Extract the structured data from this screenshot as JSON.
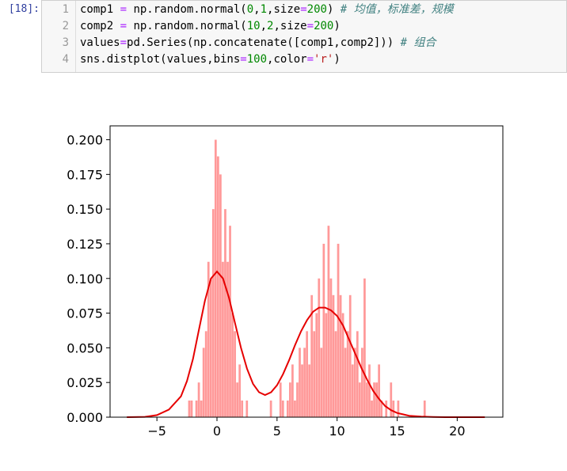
{
  "cell": {
    "prompt": "[18]:",
    "lines": [
      {
        "num": "1",
        "tokens": [
          {
            "t": "comp1 ",
            "c": "kw"
          },
          {
            "t": "=",
            "c": "op"
          },
          {
            "t": " np.random.normal(",
            "c": "kw"
          },
          {
            "t": "0",
            "c": "num"
          },
          {
            "t": ",",
            "c": "kw"
          },
          {
            "t": "1",
            "c": "num"
          },
          {
            "t": ",size",
            "c": "kw"
          },
          {
            "t": "=",
            "c": "op"
          },
          {
            "t": "200",
            "c": "num"
          },
          {
            "t": ") ",
            "c": "kw"
          },
          {
            "t": "# 均值，标准差，规模",
            "c": "com"
          }
        ]
      },
      {
        "num": "2",
        "tokens": [
          {
            "t": "comp2 ",
            "c": "kw"
          },
          {
            "t": "=",
            "c": "op"
          },
          {
            "t": " np.random.normal(",
            "c": "kw"
          },
          {
            "t": "10",
            "c": "num"
          },
          {
            "t": ",",
            "c": "kw"
          },
          {
            "t": "2",
            "c": "num"
          },
          {
            "t": ",size",
            "c": "kw"
          },
          {
            "t": "=",
            "c": "op"
          },
          {
            "t": "200",
            "c": "num"
          },
          {
            "t": ")",
            "c": "kw"
          }
        ]
      },
      {
        "num": "3",
        "tokens": [
          {
            "t": "values",
            "c": "kw"
          },
          {
            "t": "=",
            "c": "op"
          },
          {
            "t": "pd.Series(np.concatenate([comp1,comp2])) ",
            "c": "kw"
          },
          {
            "t": "# 组合",
            "c": "com"
          }
        ]
      },
      {
        "num": "4",
        "tokens": [
          {
            "t": "sns.distplot(values,bins",
            "c": "kw"
          },
          {
            "t": "=",
            "c": "op"
          },
          {
            "t": "100",
            "c": "num"
          },
          {
            "t": ",color",
            "c": "kw"
          },
          {
            "t": "=",
            "c": "op"
          },
          {
            "t": "'r'",
            "c": "str"
          },
          {
            "t": ")",
            "c": "kw"
          }
        ]
      }
    ]
  },
  "chart_data": {
    "type": "bar",
    "subtype": "histogram_with_kde",
    "title": "",
    "xlabel": "",
    "ylabel": "",
    "xlim": [
      -8.9,
      23.8
    ],
    "ylim": [
      0,
      0.21
    ],
    "xticks": [
      -5,
      0,
      5,
      10,
      15,
      20
    ],
    "xtick_labels": [
      "−5",
      "0",
      "5",
      "10",
      "15",
      "20"
    ],
    "yticks": [
      0,
      0.025,
      0.05,
      0.075,
      0.1,
      0.125,
      0.15,
      0.175,
      0.2
    ],
    "ytick_labels": [
      "0.000",
      "0.025",
      "0.050",
      "0.075",
      "0.100",
      "0.125",
      "0.150",
      "0.175",
      "0.200"
    ],
    "grid": false,
    "legend": "none",
    "bar_color": "#ff9999",
    "line_color": "#e60000",
    "bin_width": 0.2,
    "bins": [
      {
        "x": -2.4,
        "y": 0.012
      },
      {
        "x": -2.2,
        "y": 0.012
      },
      {
        "x": -1.8,
        "y": 0.012
      },
      {
        "x": -1.6,
        "y": 0.025
      },
      {
        "x": -1.4,
        "y": 0.012
      },
      {
        "x": -1.2,
        "y": 0.05
      },
      {
        "x": -1.0,
        "y": 0.062
      },
      {
        "x": -0.8,
        "y": 0.112
      },
      {
        "x": -0.6,
        "y": 0.1
      },
      {
        "x": -0.4,
        "y": 0.15
      },
      {
        "x": -0.2,
        "y": 0.2
      },
      {
        "x": 0.0,
        "y": 0.188
      },
      {
        "x": 0.2,
        "y": 0.175
      },
      {
        "x": 0.4,
        "y": 0.112
      },
      {
        "x": 0.6,
        "y": 0.15
      },
      {
        "x": 0.8,
        "y": 0.112
      },
      {
        "x": 1.0,
        "y": 0.138
      },
      {
        "x": 1.2,
        "y": 0.075
      },
      {
        "x": 1.4,
        "y": 0.062
      },
      {
        "x": 1.6,
        "y": 0.025
      },
      {
        "x": 1.8,
        "y": 0.038
      },
      {
        "x": 2.0,
        "y": 0.012
      },
      {
        "x": 2.4,
        "y": 0.012
      },
      {
        "x": 4.4,
        "y": 0.012
      },
      {
        "x": 5.2,
        "y": 0.025
      },
      {
        "x": 5.4,
        "y": 0.012
      },
      {
        "x": 5.8,
        "y": 0.012
      },
      {
        "x": 6.0,
        "y": 0.025
      },
      {
        "x": 6.2,
        "y": 0.038
      },
      {
        "x": 6.4,
        "y": 0.012
      },
      {
        "x": 6.6,
        "y": 0.025
      },
      {
        "x": 6.8,
        "y": 0.05
      },
      {
        "x": 7.0,
        "y": 0.038
      },
      {
        "x": 7.2,
        "y": 0.05
      },
      {
        "x": 7.4,
        "y": 0.062
      },
      {
        "x": 7.6,
        "y": 0.038
      },
      {
        "x": 7.8,
        "y": 0.088
      },
      {
        "x": 8.0,
        "y": 0.062
      },
      {
        "x": 8.2,
        "y": 0.075
      },
      {
        "x": 8.4,
        "y": 0.1
      },
      {
        "x": 8.6,
        "y": 0.05
      },
      {
        "x": 8.8,
        "y": 0.125
      },
      {
        "x": 9.0,
        "y": 0.075
      },
      {
        "x": 9.2,
        "y": 0.138
      },
      {
        "x": 9.4,
        "y": 0.1
      },
      {
        "x": 9.6,
        "y": 0.088
      },
      {
        "x": 9.8,
        "y": 0.062
      },
      {
        "x": 10.0,
        "y": 0.125
      },
      {
        "x": 10.2,
        "y": 0.088
      },
      {
        "x": 10.4,
        "y": 0.075
      },
      {
        "x": 10.6,
        "y": 0.05
      },
      {
        "x": 10.8,
        "y": 0.062
      },
      {
        "x": 11.0,
        "y": 0.088
      },
      {
        "x": 11.2,
        "y": 0.038
      },
      {
        "x": 11.4,
        "y": 0.05
      },
      {
        "x": 11.6,
        "y": 0.062
      },
      {
        "x": 11.8,
        "y": 0.025
      },
      {
        "x": 12.0,
        "y": 0.05
      },
      {
        "x": 12.2,
        "y": 0.1
      },
      {
        "x": 12.4,
        "y": 0.025
      },
      {
        "x": 12.6,
        "y": 0.038
      },
      {
        "x": 12.8,
        "y": 0.012
      },
      {
        "x": 13.0,
        "y": 0.025
      },
      {
        "x": 13.2,
        "y": 0.025
      },
      {
        "x": 13.4,
        "y": 0.038
      },
      {
        "x": 13.6,
        "y": 0.012
      },
      {
        "x": 14.0,
        "y": 0.012
      },
      {
        "x": 14.4,
        "y": 0.025
      },
      {
        "x": 14.6,
        "y": 0.012
      },
      {
        "x": 15.0,
        "y": 0.012
      },
      {
        "x": 17.2,
        "y": 0.012
      }
    ],
    "kde": {
      "x": [
        -7.5,
        -6,
        -5,
        -4,
        -3,
        -2.5,
        -2,
        -1.5,
        -1,
        -0.5,
        0,
        0.5,
        1,
        1.5,
        2,
        2.5,
        3,
        3.5,
        4,
        4.5,
        5,
        5.5,
        6,
        6.5,
        7,
        7.5,
        8,
        8.5,
        9,
        9.5,
        10,
        10.5,
        11,
        11.5,
        12,
        12.5,
        13,
        13.5,
        14,
        14.5,
        15,
        16,
        17,
        18,
        19,
        20,
        21,
        22.3
      ],
      "y": [
        0.0,
        0.0002,
        0.0015,
        0.0055,
        0.015,
        0.026,
        0.042,
        0.063,
        0.084,
        0.1,
        0.105,
        0.1,
        0.086,
        0.068,
        0.05,
        0.035,
        0.024,
        0.018,
        0.016,
        0.018,
        0.023,
        0.031,
        0.041,
        0.052,
        0.062,
        0.07,
        0.076,
        0.079,
        0.079,
        0.077,
        0.073,
        0.066,
        0.056,
        0.046,
        0.036,
        0.027,
        0.019,
        0.013,
        0.008,
        0.005,
        0.003,
        0.001,
        0.0004,
        0.0001,
        0.0,
        0.0,
        0.0,
        0.0
      ]
    }
  }
}
